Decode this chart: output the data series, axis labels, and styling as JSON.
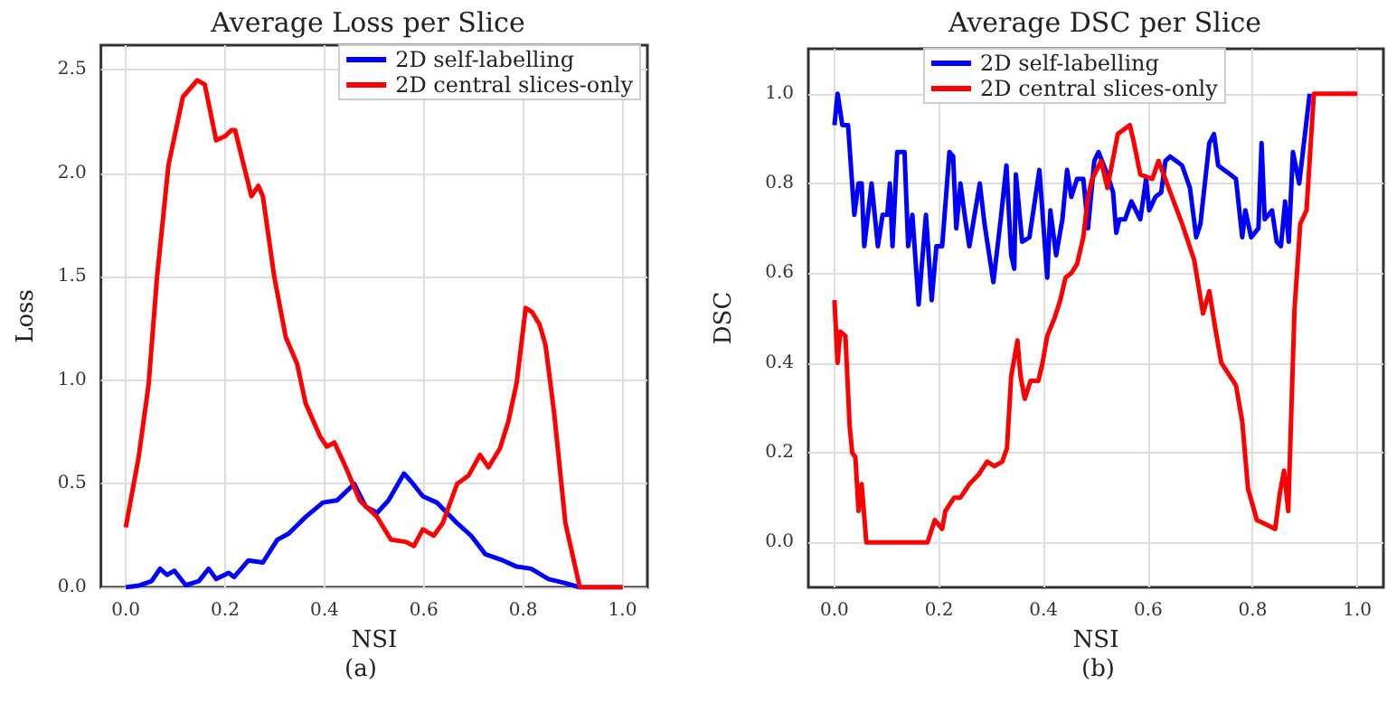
{
  "chart_data": [
    {
      "type": "line",
      "title": "Average Loss per Slice",
      "xlabel": "NSI",
      "ylabel": "Loss",
      "annotations": [
        "(a)"
      ],
      "legend": "top right",
      "grid": true,
      "line_style": "solid",
      "marker": "none",
      "xlim": [
        -0.05,
        1.05
      ],
      "xticks": [
        {
          "value": 0,
          "label": "0.0"
        },
        {
          "value": 0.2,
          "label": "0.2"
        },
        {
          "value": 0.4,
          "label": "0.4"
        },
        {
          "value": 0.6,
          "label": "0.6"
        },
        {
          "value": 0.8,
          "label": "0.8"
        },
        {
          "value": 1,
          "label": "1.0"
        }
      ],
      "ylim": [
        0,
        2.62
      ],
      "yticks": [
        {
          "value": 0,
          "label": "0.0"
        },
        {
          "value": 0.5,
          "label": "0.5"
        },
        {
          "value": 1,
          "label": "1.0"
        },
        {
          "value": 1.5,
          "label": "1.5"
        },
        {
          "value": 2,
          "label": "2.0"
        },
        {
          "value": 2.5,
          "label": "2.5"
        }
      ],
      "series": [
        {
          "name": "2D self-labelling",
          "color": "#0000ff",
          "x": [
            0,
            0.029,
            0.052,
            0.069,
            0.083,
            0.098,
            0.121,
            0.147,
            0.167,
            0.182,
            0.207,
            0.218,
            0.247,
            0.276,
            0.305,
            0.328,
            0.362,
            0.397,
            0.425,
            0.46,
            0.483,
            0.506,
            0.529,
            0.56,
            0.575,
            0.598,
            0.626,
            0.667,
            0.695,
            0.724,
            0.759,
            0.787,
            0.816,
            0.851,
            0.885,
            0.914,
            1.0
          ],
          "values": [
            0,
            0.01,
            0.03,
            0.09,
            0.06,
            0.08,
            0.01,
            0.03,
            0.09,
            0.04,
            0.07,
            0.05,
            0.13,
            0.12,
            0.23,
            0.26,
            0.34,
            0.41,
            0.42,
            0.5,
            0.39,
            0.36,
            0.42,
            0.55,
            0.51,
            0.44,
            0.41,
            0.31,
            0.25,
            0.16,
            0.13,
            0.1,
            0.09,
            0.04,
            0.02,
            0,
            0
          ]
        },
        {
          "name": "2D central slices-only",
          "color": "#ff0000",
          "x": [
            0,
            0.026,
            0.046,
            0.063,
            0.086,
            0.115,
            0.144,
            0.159,
            0.182,
            0.2,
            0.213,
            0.22,
            0.253,
            0.267,
            0.276,
            0.299,
            0.322,
            0.345,
            0.362,
            0.391,
            0.405,
            0.42,
            0.443,
            0.471,
            0.506,
            0.534,
            0.563,
            0.58,
            0.598,
            0.62,
            0.638,
            0.667,
            0.69,
            0.713,
            0.73,
            0.753,
            0.77,
            0.787,
            0.805,
            0.818,
            0.833,
            0.845,
            0.862,
            0.885,
            0.914,
            1.0
          ],
          "values": [
            0.29,
            0.63,
            0.98,
            1.5,
            2.04,
            2.37,
            2.45,
            2.43,
            2.16,
            2.18,
            2.21,
            2.21,
            1.89,
            1.94,
            1.89,
            1.5,
            1.21,
            1.08,
            0.89,
            0.73,
            0.68,
            0.7,
            0.58,
            0.42,
            0.34,
            0.23,
            0.22,
            0.2,
            0.28,
            0.25,
            0.31,
            0.5,
            0.54,
            0.64,
            0.58,
            0.67,
            0.8,
            0.99,
            1.35,
            1.33,
            1.27,
            1.17,
            0.85,
            0.31,
            0,
            0
          ]
        }
      ]
    },
    {
      "type": "line",
      "title": "Average DSC per Slice",
      "xlabel": "NSI",
      "ylabel": "DSC",
      "annotations": [
        "(b)"
      ],
      "legend": "top",
      "grid": true,
      "line_style": "solid",
      "marker": "none",
      "xlim": [
        -0.05,
        1.05
      ],
      "xticks": [
        {
          "value": 0,
          "label": "0.0"
        },
        {
          "value": 0.2,
          "label": "0.2"
        },
        {
          "value": 0.4,
          "label": "0.4"
        },
        {
          "value": 0.6,
          "label": "0.6"
        },
        {
          "value": 0.8,
          "label": "0.8"
        },
        {
          "value": 1,
          "label": "1.0"
        }
      ],
      "ylim": [
        -0.1,
        1.1
      ],
      "yticks": [
        {
          "value": 0,
          "label": "0.0"
        },
        {
          "value": 0.2,
          "label": "0.2"
        },
        {
          "value": 0.4,
          "label": "0.4"
        },
        {
          "value": 0.6,
          "label": "0.6"
        },
        {
          "value": 0.8,
          "label": "0.8"
        },
        {
          "value": 1,
          "label": "1.0"
        }
      ],
      "series": [
        {
          "name": "2D self-labelling",
          "color": "#0000ff",
          "x": [
            0,
            0.006,
            0.015,
            0.026,
            0.038,
            0.046,
            0.052,
            0.057,
            0.071,
            0.083,
            0.092,
            0.101,
            0.106,
            0.111,
            0.12,
            0.134,
            0.141,
            0.149,
            0.161,
            0.175,
            0.186,
            0.195,
            0.206,
            0.22,
            0.227,
            0.233,
            0.241,
            0.249,
            0.258,
            0.278,
            0.287,
            0.304,
            0.318,
            0.329,
            0.338,
            0.344,
            0.347,
            0.359,
            0.373,
            0.392,
            0.407,
            0.413,
            0.424,
            0.436,
            0.445,
            0.453,
            0.464,
            0.476,
            0.485,
            0.497,
            0.505,
            0.522,
            0.533,
            0.539,
            0.545,
            0.556,
            0.568,
            0.585,
            0.596,
            0.602,
            0.614,
            0.625,
            0.633,
            0.642,
            0.654,
            0.665,
            0.68,
            0.692,
            0.7,
            0.717,
            0.726,
            0.734,
            0.757,
            0.768,
            0.78,
            0.786,
            0.797,
            0.811,
            0.817,
            0.823,
            0.837,
            0.846,
            0.854,
            0.862,
            0.869,
            0.877,
            0.889,
            0.909
          ],
          "values": [
            0.93,
            1.0,
            0.93,
            0.93,
            0.73,
            0.8,
            0.8,
            0.66,
            0.8,
            0.66,
            0.73,
            0.73,
            0.8,
            0.66,
            0.87,
            0.87,
            0.66,
            0.73,
            0.53,
            0.73,
            0.54,
            0.66,
            0.66,
            0.87,
            0.86,
            0.7,
            0.8,
            0.73,
            0.66,
            0.8,
            0.71,
            0.58,
            0.72,
            0.84,
            0.64,
            0.61,
            0.82,
            0.67,
            0.68,
            0.83,
            0.59,
            0.74,
            0.64,
            0.72,
            0.83,
            0.77,
            0.81,
            0.81,
            0.7,
            0.85,
            0.87,
            0.82,
            0.78,
            0.69,
            0.72,
            0.72,
            0.76,
            0.72,
            0.81,
            0.74,
            0.77,
            0.78,
            0.85,
            0.86,
            0.85,
            0.84,
            0.79,
            0.68,
            0.71,
            0.89,
            0.91,
            0.84,
            0.82,
            0.81,
            0.68,
            0.74,
            0.68,
            0.7,
            0.89,
            0.72,
            0.74,
            0.67,
            0.66,
            0.76,
            0.67,
            0.87,
            0.8,
            1.0
          ]
        },
        {
          "name": "2D central slices-only",
          "color": "#ff0000",
          "x": [
            0,
            0.006,
            0.011,
            0.021,
            0.029,
            0.034,
            0.04,
            0.046,
            0.052,
            0.061,
            0.178,
            0.192,
            0.206,
            0.212,
            0.229,
            0.241,
            0.258,
            0.275,
            0.292,
            0.306,
            0.321,
            0.33,
            0.338,
            0.35,
            0.356,
            0.364,
            0.375,
            0.39,
            0.398,
            0.407,
            0.421,
            0.432,
            0.442,
            0.453,
            0.464,
            0.476,
            0.485,
            0.493,
            0.51,
            0.522,
            0.542,
            0.565,
            0.573,
            0.585,
            0.608,
            0.62,
            0.636,
            0.665,
            0.688,
            0.705,
            0.717,
            0.728,
            0.74,
            0.757,
            0.768,
            0.78,
            0.791,
            0.808,
            0.826,
            0.843,
            0.852,
            0.86,
            0.868,
            0.88,
            0.891,
            0.903,
            0.917,
            1.0
          ],
          "values": [
            0.54,
            0.4,
            0.47,
            0.46,
            0.26,
            0.2,
            0.19,
            0.07,
            0.13,
            0,
            0,
            0.05,
            0.03,
            0.07,
            0.1,
            0.1,
            0.13,
            0.15,
            0.18,
            0.17,
            0.18,
            0.21,
            0.37,
            0.45,
            0.37,
            0.32,
            0.36,
            0.36,
            0.4,
            0.46,
            0.5,
            0.54,
            0.59,
            0.6,
            0.62,
            0.68,
            0.77,
            0.81,
            0.85,
            0.79,
            0.91,
            0.93,
            0.89,
            0.82,
            0.81,
            0.85,
            0.8,
            0.71,
            0.63,
            0.51,
            0.56,
            0.48,
            0.4,
            0.37,
            0.35,
            0.27,
            0.12,
            0.05,
            0.04,
            0.03,
            0.11,
            0.16,
            0.07,
            0.52,
            0.71,
            0.74,
            1.0,
            1.0
          ]
        }
      ]
    }
  ]
}
